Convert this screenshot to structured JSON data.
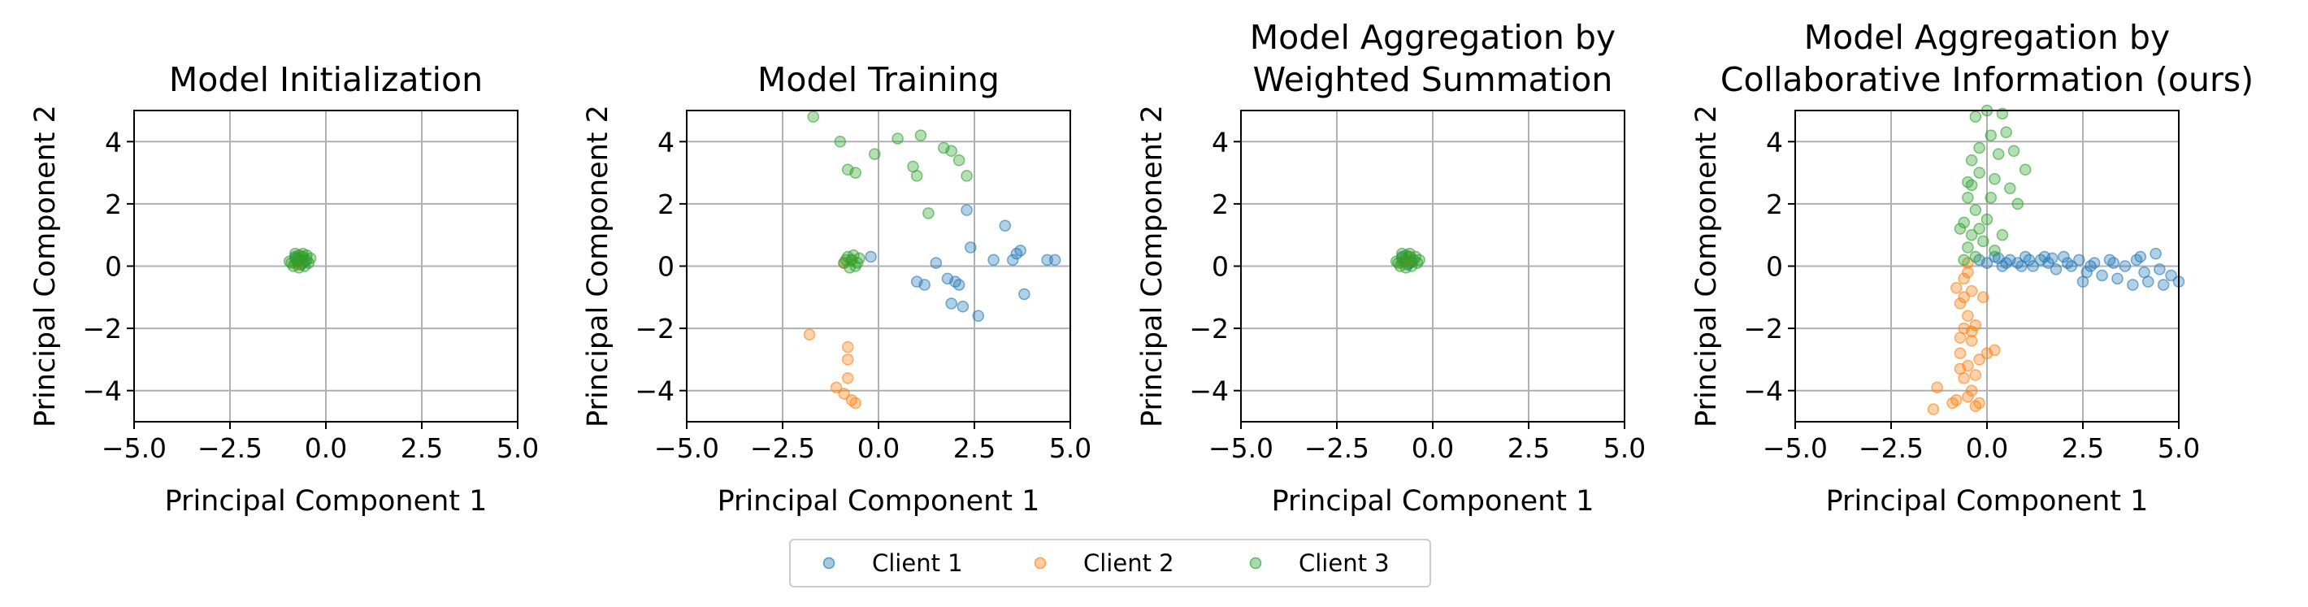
{
  "legend": {
    "placement": "bottom-center",
    "entries": [
      {
        "label": "Client 1",
        "color": "#1f77b4"
      },
      {
        "label": "Client 2",
        "color": "#ff7f0e"
      },
      {
        "label": "Client 3",
        "color": "#2ca02c"
      }
    ]
  },
  "chart_data": [
    {
      "type": "scatter",
      "title_lines": [
        "Model Initialization"
      ],
      "xlabel": "Principal Component 1",
      "ylabel": "Principal Component 2",
      "xlim": [
        -5,
        5
      ],
      "ylim": [
        -5,
        5
      ],
      "xticks": [
        -5,
        -2.5,
        0,
        2.5,
        5
      ],
      "xtick_labels": [
        "−5.0",
        "−2.5",
        "0.0",
        "2.5",
        "5.0"
      ],
      "yticks": [
        -4,
        -2,
        0,
        2,
        4
      ],
      "ytick_labels": [
        "−4",
        "−2",
        "0",
        "2",
        "4"
      ],
      "grid": true,
      "series": [
        {
          "name": "Client 1",
          "points": [
            [
              -0.7,
              0.2
            ],
            [
              -0.6,
              0.1
            ],
            [
              -0.8,
              0.3
            ],
            [
              -0.55,
              0.15
            ],
            [
              -0.65,
              0.05
            ],
            [
              -0.75,
              0.25
            ]
          ]
        },
        {
          "name": "Client 2",
          "points": [
            [
              -0.7,
              0.15
            ],
            [
              -0.6,
              0.2
            ],
            [
              -0.8,
              0.1
            ],
            [
              -0.65,
              0.3
            ],
            [
              -0.72,
              0.05
            ]
          ]
        },
        {
          "name": "Client 3",
          "points": [
            [
              -0.9,
              0.1
            ],
            [
              -0.8,
              0.25
            ],
            [
              -0.7,
              0.35
            ],
            [
              -0.6,
              0.3
            ],
            [
              -0.5,
              0.2
            ],
            [
              -0.45,
              0.1
            ],
            [
              -0.55,
              0.0
            ],
            [
              -0.7,
              -0.05
            ],
            [
              -0.85,
              0.0
            ],
            [
              -0.95,
              0.15
            ],
            [
              -0.75,
              0.15
            ],
            [
              -0.6,
              0.4
            ],
            [
              -0.8,
              0.4
            ],
            [
              -0.5,
              0.35
            ],
            [
              -0.65,
              0.2
            ],
            [
              -0.4,
              0.25
            ]
          ]
        }
      ]
    },
    {
      "type": "scatter",
      "title_lines": [
        "Model Training"
      ],
      "xlabel": "Principal Component 1",
      "ylabel": "Principal Component 2",
      "xlim": [
        -5,
        5
      ],
      "ylim": [
        -5,
        5
      ],
      "xticks": [
        -5,
        -2.5,
        0,
        2.5,
        5
      ],
      "xtick_labels": [
        "−5.0",
        "−2.5",
        "0.0",
        "2.5",
        "5.0"
      ],
      "yticks": [
        -4,
        -2,
        0,
        2,
        4
      ],
      "ytick_labels": [
        "−4",
        "−2",
        "0",
        "2",
        "4"
      ],
      "grid": true,
      "series": [
        {
          "name": "Client 1",
          "points": [
            [
              -0.2,
              0.3
            ],
            [
              1.0,
              -0.5
            ],
            [
              1.2,
              -0.6
            ],
            [
              1.5,
              0.1
            ],
            [
              1.8,
              -0.4
            ],
            [
              2.0,
              -0.5
            ],
            [
              2.2,
              -1.3
            ],
            [
              2.3,
              1.8
            ],
            [
              2.4,
              0.6
            ],
            [
              2.6,
              -1.6
            ],
            [
              3.0,
              0.2
            ],
            [
              3.3,
              1.3
            ],
            [
              3.5,
              0.2
            ],
            [
              3.7,
              0.5
            ],
            [
              3.8,
              -0.9
            ],
            [
              4.4,
              0.2
            ],
            [
              4.6,
              0.2
            ],
            [
              1.9,
              -1.2
            ],
            [
              2.1,
              -0.6
            ],
            [
              3.6,
              0.4
            ]
          ]
        },
        {
          "name": "Client 2",
          "points": [
            [
              -1.8,
              -2.2
            ],
            [
              -1.1,
              -3.9
            ],
            [
              -0.9,
              -4.1
            ],
            [
              -0.8,
              -3.6
            ],
            [
              -0.7,
              -4.3
            ],
            [
              -0.6,
              -4.4
            ],
            [
              -0.8,
              -2.6
            ],
            [
              -0.8,
              -3.0
            ],
            [
              -0.9,
              0.1
            ],
            [
              -0.7,
              0.2
            ]
          ]
        },
        {
          "name": "Client 3",
          "points": [
            [
              -1.7,
              4.8
            ],
            [
              -1.0,
              4.0
            ],
            [
              -0.8,
              3.1
            ],
            [
              -0.6,
              3.0
            ],
            [
              -0.1,
              3.6
            ],
            [
              0.5,
              4.1
            ],
            [
              0.9,
              3.2
            ],
            [
              1.0,
              2.9
            ],
            [
              1.1,
              4.2
            ],
            [
              1.3,
              1.7
            ],
            [
              1.7,
              3.8
            ],
            [
              1.9,
              3.7
            ],
            [
              2.1,
              3.4
            ],
            [
              2.3,
              2.9
            ],
            [
              -0.9,
              0.1
            ],
            [
              -0.8,
              0.3
            ],
            [
              -0.7,
              0.2
            ],
            [
              -0.6,
              0.0
            ],
            [
              -0.5,
              0.25
            ],
            [
              -0.75,
              -0.05
            ],
            [
              -0.85,
              0.2
            ],
            [
              -0.65,
              0.35
            ],
            [
              -0.55,
              0.1
            ]
          ]
        }
      ]
    },
    {
      "type": "scatter",
      "title_lines": [
        "Model Aggregation by",
        "Weighted Summation"
      ],
      "xlabel": "Principal Component 1",
      "ylabel": "Principal Component 2",
      "xlim": [
        -5,
        5
      ],
      "ylim": [
        -5,
        5
      ],
      "xticks": [
        -5,
        -2.5,
        0,
        2.5,
        5
      ],
      "xtick_labels": [
        "−5.0",
        "−2.5",
        "0.0",
        "2.5",
        "5.0"
      ],
      "yticks": [
        -4,
        -2,
        0,
        2,
        4
      ],
      "ytick_labels": [
        "−4",
        "−2",
        "0",
        "2",
        "4"
      ],
      "grid": true,
      "series": [
        {
          "name": "Client 1",
          "points": [
            [
              -0.7,
              0.2
            ],
            [
              -0.6,
              0.1
            ],
            [
              -0.8,
              0.3
            ],
            [
              -0.55,
              0.15
            ],
            [
              -0.65,
              0.05
            ]
          ]
        },
        {
          "name": "Client 2",
          "points": [
            [
              -0.7,
              0.15
            ],
            [
              -0.6,
              0.2
            ],
            [
              -0.8,
              0.1
            ],
            [
              -0.65,
              0.3
            ]
          ]
        },
        {
          "name": "Client 3",
          "points": [
            [
              -0.9,
              0.1
            ],
            [
              -0.8,
              0.25
            ],
            [
              -0.7,
              0.35
            ],
            [
              -0.6,
              0.3
            ],
            [
              -0.5,
              0.2
            ],
            [
              -0.4,
              0.1
            ],
            [
              -0.55,
              0.0
            ],
            [
              -0.7,
              -0.05
            ],
            [
              -0.85,
              0.0
            ],
            [
              -0.95,
              0.15
            ],
            [
              -0.75,
              0.15
            ],
            [
              -0.6,
              0.4
            ],
            [
              -0.8,
              0.4
            ],
            [
              -0.45,
              0.3
            ],
            [
              -0.35,
              0.2
            ]
          ]
        }
      ]
    },
    {
      "type": "scatter",
      "title_lines": [
        "Model Aggregation by",
        "Collaborative Information (ours)"
      ],
      "xlabel": "Principal Component 1",
      "ylabel": "Principal Component 2",
      "xlim": [
        -5,
        5
      ],
      "ylim": [
        -5,
        5
      ],
      "xticks": [
        -5,
        -2.5,
        0,
        2.5,
        5
      ],
      "xtick_labels": [
        "−5.0",
        "−2.5",
        "0.0",
        "2.5",
        "5.0"
      ],
      "yticks": [
        -4,
        -2,
        0,
        2,
        4
      ],
      "ytick_labels": [
        "−4",
        "−2",
        "0",
        "2",
        "4"
      ],
      "grid": true,
      "series": [
        {
          "name": "Client 1",
          "points": [
            [
              -0.2,
              0.2
            ],
            [
              0.0,
              0.1
            ],
            [
              0.2,
              0.3
            ],
            [
              0.4,
              0.0
            ],
            [
              0.6,
              0.2
            ],
            [
              0.8,
              0.1
            ],
            [
              1.0,
              0.3
            ],
            [
              1.2,
              0.0
            ],
            [
              1.4,
              0.2
            ],
            [
              1.6,
              0.1
            ],
            [
              1.8,
              -0.1
            ],
            [
              2.0,
              0.3
            ],
            [
              2.2,
              0.0
            ],
            [
              2.4,
              0.2
            ],
            [
              2.6,
              -0.2
            ],
            [
              2.8,
              0.1
            ],
            [
              3.0,
              -0.3
            ],
            [
              3.2,
              0.2
            ],
            [
              3.4,
              -0.4
            ],
            [
              3.6,
              0.0
            ],
            [
              3.8,
              -0.6
            ],
            [
              4.0,
              0.3
            ],
            [
              4.2,
              -0.5
            ],
            [
              4.4,
              0.4
            ],
            [
              4.6,
              -0.6
            ],
            [
              4.8,
              -0.3
            ],
            [
              5.0,
              -0.5
            ],
            [
              0.3,
              0.25
            ],
            [
              0.9,
              0.0
            ],
            [
              1.5,
              0.3
            ],
            [
              2.1,
              0.1
            ],
            [
              2.7,
              0.0
            ],
            [
              3.3,
              0.1
            ],
            [
              4.1,
              -0.2
            ],
            [
              4.5,
              -0.1
            ],
            [
              3.9,
              0.2
            ],
            [
              2.5,
              -0.5
            ],
            [
              1.1,
              0.2
            ],
            [
              0.5,
              0.1
            ],
            [
              1.7,
              0.25
            ]
          ]
        },
        {
          "name": "Client 2",
          "points": [
            [
              -0.5,
              0.1
            ],
            [
              -0.6,
              -0.4
            ],
            [
              -0.4,
              -0.8
            ],
            [
              -0.7,
              -1.2
            ],
            [
              -0.5,
              -1.6
            ],
            [
              -0.6,
              -2.0
            ],
            [
              -0.4,
              -2.4
            ],
            [
              -0.7,
              -2.8
            ],
            [
              -0.5,
              -3.2
            ],
            [
              -0.6,
              -3.6
            ],
            [
              -0.4,
              -4.0
            ],
            [
              -0.8,
              -4.3
            ],
            [
              -1.4,
              -4.6
            ],
            [
              -1.3,
              -3.9
            ],
            [
              -0.9,
              -4.4
            ],
            [
              -0.3,
              -4.5
            ],
            [
              -0.2,
              -3.0
            ],
            [
              0.0,
              -2.8
            ],
            [
              0.2,
              -2.7
            ],
            [
              -0.1,
              -1.0
            ],
            [
              -0.8,
              -0.7
            ],
            [
              -0.3,
              -1.9
            ],
            [
              -0.7,
              -3.3
            ],
            [
              -0.5,
              -4.2
            ],
            [
              -0.2,
              -4.4
            ],
            [
              -0.6,
              -1.0
            ],
            [
              -0.4,
              -2.1
            ],
            [
              -0.7,
              -2.3
            ],
            [
              -0.3,
              -3.5
            ],
            [
              -0.5,
              -0.2
            ]
          ]
        },
        {
          "name": "Client 3",
          "points": [
            [
              -0.6,
              0.2
            ],
            [
              -0.5,
              0.6
            ],
            [
              -0.4,
              1.0
            ],
            [
              -0.6,
              1.4
            ],
            [
              -0.3,
              1.8
            ],
            [
              -0.5,
              2.2
            ],
            [
              -0.4,
              2.6
            ],
            [
              -0.2,
              3.0
            ],
            [
              -0.4,
              3.4
            ],
            [
              -0.2,
              3.8
            ],
            [
              0.1,
              4.2
            ],
            [
              -0.3,
              4.8
            ],
            [
              0.0,
              5.0
            ],
            [
              0.4,
              4.9
            ],
            [
              0.5,
              4.3
            ],
            [
              1.0,
              3.1
            ],
            [
              0.3,
              3.6
            ],
            [
              0.2,
              2.8
            ],
            [
              0.1,
              2.2
            ],
            [
              0.0,
              1.5
            ],
            [
              -0.1,
              0.8
            ],
            [
              0.4,
              1.0
            ],
            [
              0.6,
              2.5
            ],
            [
              0.8,
              2.0
            ],
            [
              -0.7,
              1.2
            ],
            [
              -0.2,
              1.2
            ],
            [
              -0.5,
              2.7
            ],
            [
              0.2,
              0.5
            ],
            [
              -0.3,
              0.3
            ],
            [
              0.7,
              3.7
            ]
          ]
        }
      ]
    }
  ]
}
